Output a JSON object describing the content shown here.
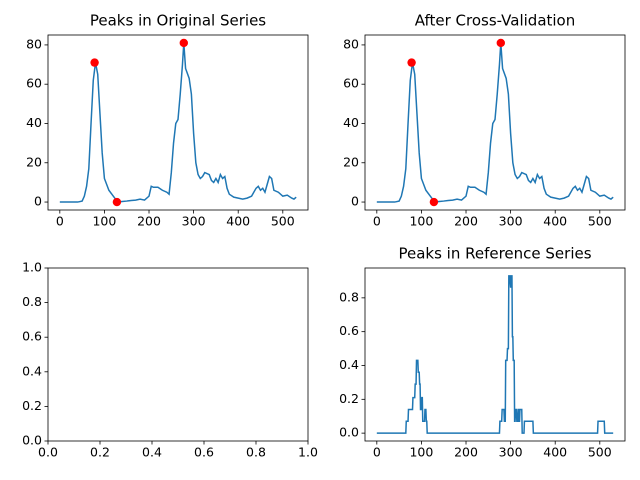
{
  "chart_data": [
    {
      "type": "line",
      "title": "Peaks in Original Series",
      "x": [
        0,
        10,
        20,
        30,
        40,
        50,
        55,
        60,
        65,
        70,
        75,
        80,
        85,
        90,
        95,
        100,
        110,
        120,
        130,
        140,
        150,
        160,
        170,
        180,
        190,
        200,
        205,
        210,
        220,
        230,
        240,
        245,
        250,
        255,
        260,
        265,
        270,
        275,
        278,
        282,
        290,
        295,
        300,
        305,
        310,
        315,
        320,
        325,
        335,
        340,
        345,
        350,
        355,
        360,
        365,
        370,
        375,
        380,
        390,
        400,
        410,
        420,
        430,
        440,
        445,
        450,
        455,
        460,
        465,
        470,
        475,
        480,
        490,
        500,
        510,
        520,
        525,
        530
      ],
      "series": [
        {
          "color": "#1f77b4",
          "values": [
            0,
            0,
            0,
            0,
            0,
            0.5,
            3,
            8,
            17,
            40,
            62,
            71,
            65,
            45,
            25,
            12,
            6,
            3,
            0,
            0.3,
            0.5,
            0.8,
            1,
            1.5,
            1,
            3,
            8,
            7.5,
            7.5,
            6,
            5,
            4,
            15,
            30,
            40,
            42,
            55,
            70,
            81,
            68,
            63,
            55,
            35,
            20,
            14,
            12,
            13,
            15,
            14,
            11,
            10,
            12,
            10,
            14,
            12,
            13,
            7,
            4,
            2.5,
            2,
            1.5,
            2,
            3,
            7,
            8,
            6,
            7,
            5,
            9,
            13,
            12,
            6,
            5,
            3,
            3.5,
            2,
            1.5,
            2.5
          ]
        },
        {
          "type": "scatter",
          "color": "#ff0000",
          "x": [
            78,
            128,
            278
          ],
          "values": [
            71,
            0,
            81
          ]
        }
      ],
      "xlim": [
        -26.5,
        556.5
      ],
      "ylim": [
        -4.05,
        85.05
      ],
      "xticks": [
        0,
        100,
        200,
        300,
        400,
        500
      ],
      "yticks": [
        0,
        20,
        40,
        60,
        80
      ]
    },
    {
      "type": "line",
      "title": "After Cross-Validation",
      "x": [
        0,
        10,
        20,
        30,
        40,
        50,
        55,
        60,
        65,
        70,
        75,
        80,
        85,
        90,
        95,
        100,
        110,
        120,
        130,
        140,
        150,
        160,
        170,
        180,
        190,
        200,
        205,
        210,
        220,
        230,
        240,
        245,
        250,
        255,
        260,
        265,
        270,
        275,
        278,
        282,
        290,
        295,
        300,
        305,
        310,
        315,
        320,
        325,
        335,
        340,
        345,
        350,
        355,
        360,
        365,
        370,
        375,
        380,
        390,
        400,
        410,
        420,
        430,
        440,
        445,
        450,
        455,
        460,
        465,
        470,
        475,
        480,
        490,
        500,
        510,
        520,
        525,
        530
      ],
      "series": [
        {
          "color": "#1f77b4",
          "values": [
            0,
            0,
            0,
            0,
            0,
            0.5,
            3,
            8,
            17,
            40,
            62,
            71,
            65,
            45,
            25,
            12,
            6,
            3,
            0,
            0.3,
            0.5,
            0.8,
            1,
            1.5,
            1,
            3,
            8,
            7.5,
            7.5,
            6,
            5,
            4,
            15,
            30,
            40,
            42,
            55,
            70,
            81,
            68,
            63,
            55,
            35,
            20,
            14,
            12,
            13,
            15,
            14,
            11,
            10,
            12,
            10,
            14,
            12,
            13,
            7,
            4,
            2.5,
            2,
            1.5,
            2,
            3,
            7,
            8,
            6,
            7,
            5,
            9,
            13,
            12,
            6,
            5,
            3,
            3.5,
            2,
            1.5,
            2.5
          ]
        },
        {
          "type": "scatter",
          "color": "#ff0000",
          "x": [
            78,
            128,
            278
          ],
          "values": [
            71,
            0,
            81
          ]
        }
      ],
      "xlim": [
        -26.5,
        556.5
      ],
      "ylim": [
        -4.05,
        85.05
      ],
      "xticks": [
        0,
        100,
        200,
        300,
        400,
        500
      ],
      "yticks": [
        0,
        20,
        40,
        60,
        80
      ]
    },
    {
      "type": "line",
      "x": [],
      "series": [],
      "xlim": [
        0,
        1
      ],
      "ylim": [
        0,
        1
      ],
      "xticks": [
        {
          "value": 0,
          "label": "0.0"
        },
        {
          "value": 0.2,
          "label": "0.2"
        },
        {
          "value": 0.4,
          "label": "0.4"
        },
        {
          "value": 0.6,
          "label": "0.6"
        },
        {
          "value": 0.8,
          "label": "0.8"
        },
        {
          "value": 1,
          "label": "1.0"
        }
      ],
      "yticks": [
        {
          "value": 0,
          "label": "0.0"
        },
        {
          "value": 0.2,
          "label": "0.2"
        },
        {
          "value": 0.4,
          "label": "0.4"
        },
        {
          "value": 0.6,
          "label": "0.6"
        },
        {
          "value": 0.8,
          "label": "0.8"
        },
        {
          "value": 1,
          "label": "1.0"
        }
      ]
    },
    {
      "type": "line",
      "title": "Peaks in Reference Series",
      "x": [
        0,
        65,
        66,
        70,
        71,
        80,
        81,
        85,
        86,
        88,
        89,
        92,
        93,
        95,
        96,
        97,
        98,
        100,
        101,
        102,
        103,
        107,
        108,
        110,
        111,
        112,
        113,
        275,
        276,
        280,
        281,
        285,
        286,
        288,
        289,
        292,
        293,
        295,
        296,
        298,
        300,
        301,
        303,
        304,
        305,
        306,
        308,
        309,
        310,
        311,
        313,
        314,
        316,
        317,
        318,
        319,
        320,
        321,
        325,
        326,
        330,
        331,
        335,
        336,
        350,
        351,
        495,
        496,
        510,
        511,
        530
      ],
      "series": [
        {
          "color": "#1f77b4",
          "values": [
            0,
            0,
            0.07,
            0.07,
            0.14,
            0.14,
            0.21,
            0.21,
            0.29,
            0.29,
            0.43,
            0.43,
            0.36,
            0.36,
            0.29,
            0.29,
            0.14,
            0.14,
            0.21,
            0.21,
            0.07,
            0.07,
            0.14,
            0.14,
            0.07,
            0.07,
            0,
            0,
            0.07,
            0.07,
            0.14,
            0.14,
            0.07,
            0.07,
            0.43,
            0.43,
            0.5,
            0.5,
            0.93,
            0.93,
            0.86,
            0.93,
            0.93,
            0.57,
            0.57,
            0.43,
            0.43,
            0.07,
            0.07,
            0.14,
            0.14,
            0.07,
            0.07,
            0.14,
            0.14,
            0.07,
            0.07,
            0.14,
            0.14,
            0,
            0,
            0.07,
            0.07,
            0.07,
            0.07,
            0,
            0,
            0.07,
            0.07,
            0,
            0
          ]
        }
      ],
      "xlim": [
        -26.5,
        556.5
      ],
      "ylim": [
        -0.0465,
        0.9765
      ],
      "xticks": [
        0,
        100,
        200,
        300,
        400,
        500
      ],
      "yticks": [
        {
          "value": 0,
          "label": "0.0"
        },
        {
          "value": 0.2,
          "label": "0.2"
        },
        {
          "value": 0.4,
          "label": "0.4"
        },
        {
          "value": 0.6,
          "label": "0.6"
        },
        {
          "value": 0.8,
          "label": "0.8"
        }
      ]
    }
  ]
}
